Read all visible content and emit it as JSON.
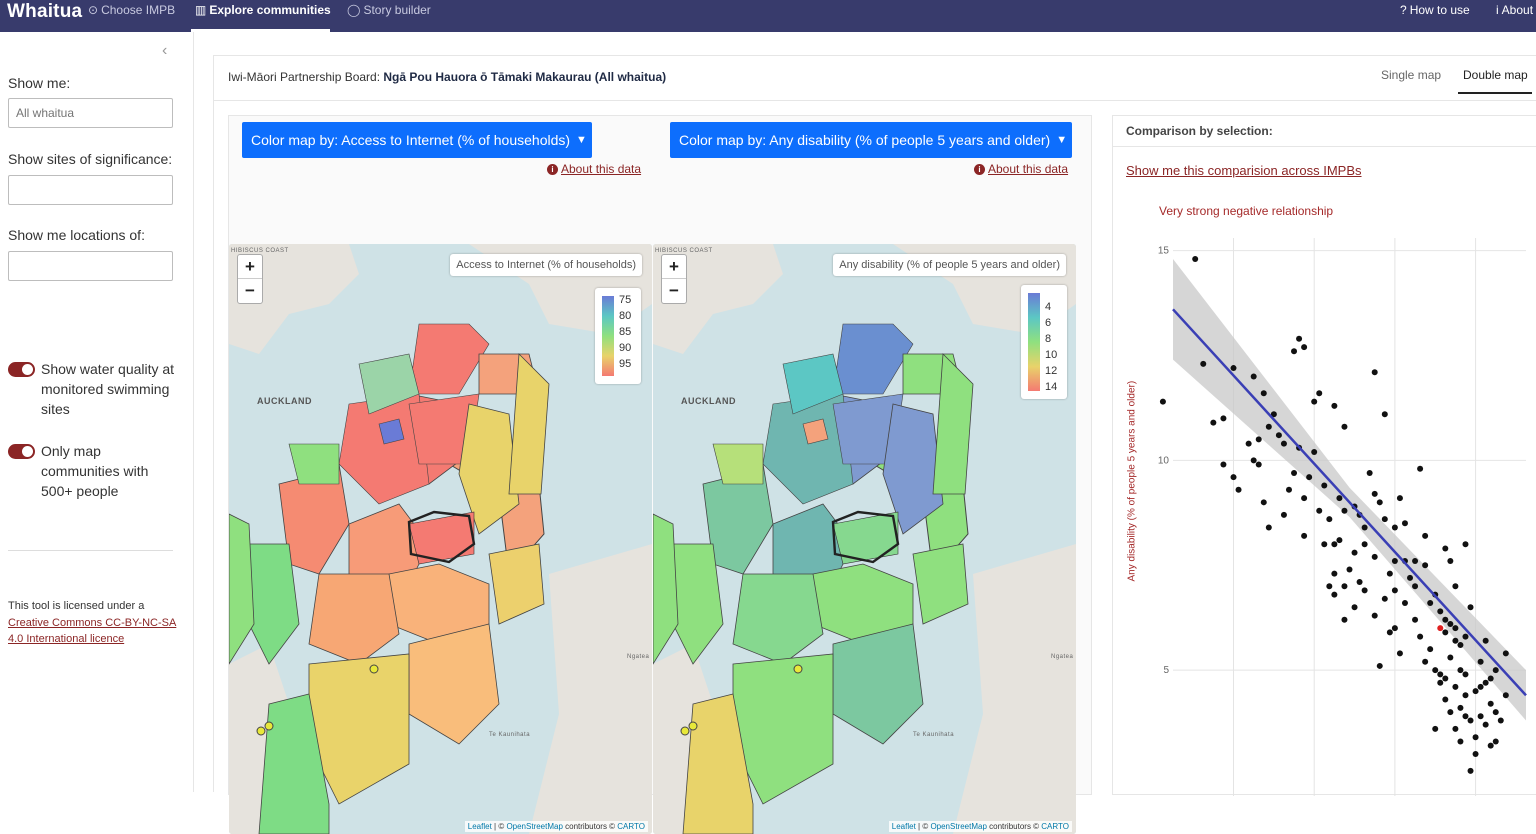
{
  "nav": {
    "brand": "Whaitua",
    "items": [
      {
        "label": "Choose IMPB",
        "icon": "check-circle-icon",
        "active": false
      },
      {
        "label": "Explore communities",
        "icon": "map-icon",
        "active": true
      },
      {
        "label": "Story builder",
        "icon": "speech-bubble-icon",
        "active": false
      }
    ],
    "right": [
      {
        "label": "How to use",
        "icon": "question-circle-icon"
      },
      {
        "label": "About",
        "icon": "info-circle-icon"
      }
    ]
  },
  "sidebar": {
    "show_me_label": "Show me:",
    "show_me_placeholder": "All whaitua",
    "sites_label": "Show sites of significance:",
    "locations_label": "Show me locations of:",
    "toggle_water": "Show water quality at monitored swimming sites",
    "toggle_500": "Only map communities with 500+ people",
    "license_prefix": "This tool is licensed under a ",
    "license_link": "Creative Commons CC-BY-NC-SA 4.0 International licence"
  },
  "main": {
    "impb_label": "Iwi-Māori Partnership Board: ",
    "impb_value": "Ngā Pou Hauora ō Tāmaki Makaurau (All whaitua)",
    "tabs": [
      {
        "label": "Single map",
        "active": false
      },
      {
        "label": "Double map",
        "active": true
      }
    ]
  },
  "maps": [
    {
      "button": "Color map by: Access to Internet (% of households)",
      "about": "About this data",
      "title": "Access to Internet (% of households)",
      "legend_ticks": [
        "75",
        "80",
        "85",
        "90",
        "95"
      ],
      "legend_colors": [
        "#6a7bd6",
        "#5cc7c4",
        "#8fe07f",
        "#e8d36a",
        "#f47a72"
      ]
    },
    {
      "button": "Color map by: Any disability (% of people 5 years and older)",
      "about": "About this data",
      "title": "Any disability (% of people 5 years and older)",
      "legend_ticks": [
        "4",
        "6",
        "8",
        "10",
        "12",
        "14"
      ],
      "legend_colors": [
        "#6a7bd6",
        "#5cc7c4",
        "#8fe07f",
        "#e8d36a",
        "#f47a72"
      ]
    }
  ],
  "map_labels": {
    "auckland": "AUCKLAND",
    "coast": "HIBISCUS COAST",
    "kaunihata": "Te Kaunihata",
    "ngatea": "Ngatea"
  },
  "attribution": {
    "leaflet": "Leaflet",
    "osm": "OpenStreetMap",
    "mid": " contributors © ",
    "carto": "CARTO",
    "sep": " | © "
  },
  "comparison": {
    "title": "Comparison by selection:",
    "link": "Show me this comparision across IMPBs",
    "relationship": "Very strong negative relationship",
    "ylabel": "Any disability (% of people 5 years and older)"
  },
  "chart_data": {
    "type": "scatter",
    "title": "",
    "xlabel": "",
    "ylabel": "Any disability (% of people 5 years and older)",
    "yticks": [
      5,
      10,
      15
    ],
    "ylim": [
      2,
      15.3
    ],
    "xlim": [
      64,
      99
    ],
    "grid": true,
    "fit_line": {
      "x": [
        64,
        99
      ],
      "y": [
        13.6,
        4.4
      ]
    },
    "highlight": {
      "x": 90.5,
      "y": 6.0,
      "color": "#e02020"
    },
    "points": [
      [
        66.2,
        14.8
      ],
      [
        63.0,
        11.4
      ],
      [
        67.0,
        12.3
      ],
      [
        70.0,
        12.2
      ],
      [
        69.0,
        11.0
      ],
      [
        68.0,
        10.9
      ],
      [
        72.0,
        12.0
      ],
      [
        73.0,
        11.6
      ],
      [
        72.5,
        10.5
      ],
      [
        72.0,
        10.0
      ],
      [
        74.0,
        11.1
      ],
      [
        76.0,
        12.6
      ],
      [
        76.5,
        12.9
      ],
      [
        77.0,
        12.7
      ],
      [
        78.5,
        11.6
      ],
      [
        78.0,
        11.4
      ],
      [
        80.0,
        11.3
      ],
      [
        81.0,
        10.8
      ],
      [
        84.0,
        12.1
      ],
      [
        84.0,
        9.2
      ],
      [
        85.0,
        11.1
      ],
      [
        69.0,
        9.9
      ],
      [
        70.0,
        9.6
      ],
      [
        72.5,
        9.9
      ],
      [
        73.0,
        9.0
      ],
      [
        73.5,
        8.4
      ],
      [
        75.0,
        8.7
      ],
      [
        75.5,
        9.3
      ],
      [
        76.0,
        9.7
      ],
      [
        77.0,
        8.2
      ],
      [
        77.5,
        9.6
      ],
      [
        78.0,
        10.2
      ],
      [
        79.0,
        9.4
      ],
      [
        79.5,
        8.6
      ],
      [
        80.0,
        7.3
      ],
      [
        80.5,
        9.1
      ],
      [
        81.0,
        8.8
      ],
      [
        82.0,
        7.8
      ],
      [
        82.0,
        8.9
      ],
      [
        83.0,
        8.4
      ],
      [
        83.5,
        9.7
      ],
      [
        84.5,
        9.0
      ],
      [
        85.0,
        8.6
      ],
      [
        86.0,
        7.6
      ],
      [
        86.5,
        9.1
      ],
      [
        87.0,
        8.5
      ],
      [
        87.5,
        7.2
      ],
      [
        88.0,
        7.0
      ],
      [
        88.5,
        9.8
      ],
      [
        89.0,
        8.2
      ],
      [
        89.0,
        7.5
      ],
      [
        90.0,
        6.8
      ],
      [
        90.5,
        6.4
      ],
      [
        91.0,
        7.9
      ],
      [
        91.5,
        6.1
      ],
      [
        92.0,
        5.7
      ],
      [
        80.0,
        6.8
      ],
      [
        81.0,
        7.0
      ],
      [
        82.0,
        6.5
      ],
      [
        83.0,
        6.9
      ],
      [
        84.0,
        6.3
      ],
      [
        84.5,
        5.1
      ],
      [
        85.0,
        6.7
      ],
      [
        86.0,
        6.0
      ],
      [
        86.5,
        5.4
      ],
      [
        87.0,
        7.6
      ],
      [
        88.0,
        6.2
      ],
      [
        88.5,
        5.8
      ],
      [
        89.0,
        5.2
      ],
      [
        89.5,
        5.5
      ],
      [
        90.0,
        5.0
      ],
      [
        90.5,
        4.7
      ],
      [
        91.0,
        5.9
      ],
      [
        91.5,
        5.3
      ],
      [
        92.0,
        4.6
      ],
      [
        92.5,
        5.6
      ],
      [
        93.0,
        4.9
      ],
      [
        91.0,
        4.3
      ],
      [
        91.5,
        4.0
      ],
      [
        92.0,
        3.6
      ],
      [
        92.5,
        4.1
      ],
      [
        93.0,
        4.4
      ],
      [
        93.5,
        3.8
      ],
      [
        94.0,
        4.5
      ],
      [
        94.5,
        3.9
      ],
      [
        95.0,
        4.7
      ],
      [
        95.5,
        4.2
      ],
      [
        96.0,
        3.3
      ],
      [
        94.0,
        3.0
      ],
      [
        93.5,
        2.6
      ],
      [
        92.5,
        3.3
      ],
      [
        90.0,
        3.6
      ],
      [
        90.5,
        4.9
      ],
      [
        91.5,
        7.6
      ],
      [
        92.0,
        7.0
      ],
      [
        93.0,
        8.0
      ],
      [
        93.0,
        5.8
      ],
      [
        94.5,
        5.2
      ],
      [
        95.0,
        5.7
      ],
      [
        95.5,
        4.8
      ],
      [
        96.0,
        4.0
      ],
      [
        96.5,
        3.8
      ],
      [
        97.0,
        4.4
      ],
      [
        97.0,
        5.4
      ],
      [
        96.0,
        5.0
      ],
      [
        85.5,
        7.3
      ],
      [
        86.0,
        8.4
      ],
      [
        82.5,
        7.1
      ],
      [
        81.5,
        7.4
      ],
      [
        80.5,
        8.1
      ],
      [
        79.0,
        8.0
      ],
      [
        78.5,
        8.8
      ],
      [
        77.0,
        9.1
      ],
      [
        76.5,
        10.3
      ],
      [
        75.0,
        10.4
      ],
      [
        74.5,
        10.6
      ],
      [
        73.5,
        10.8
      ],
      [
        71.5,
        10.4
      ],
      [
        70.5,
        9.3
      ],
      [
        84.0,
        7.7
      ],
      [
        87.0,
        6.6
      ],
      [
        88.0,
        7.6
      ],
      [
        89.5,
        6.6
      ],
      [
        91.0,
        6.2
      ],
      [
        93.5,
        6.5
      ],
      [
        92.0,
        6.0
      ],
      [
        83.0,
        8.0
      ],
      [
        82.5,
        8.7
      ],
      [
        80.0,
        8.0
      ],
      [
        79.5,
        7.0
      ],
      [
        81.0,
        6.2
      ],
      [
        85.5,
        5.9
      ],
      [
        86.0,
        6.9
      ],
      [
        94.0,
        3.4
      ],
      [
        95.0,
        3.7
      ],
      [
        93.0,
        3.9
      ],
      [
        94.5,
        4.6
      ],
      [
        92.5,
        5.0
      ],
      [
        91.0,
        4.8
      ],
      [
        95.5,
        3.2
      ]
    ]
  }
}
